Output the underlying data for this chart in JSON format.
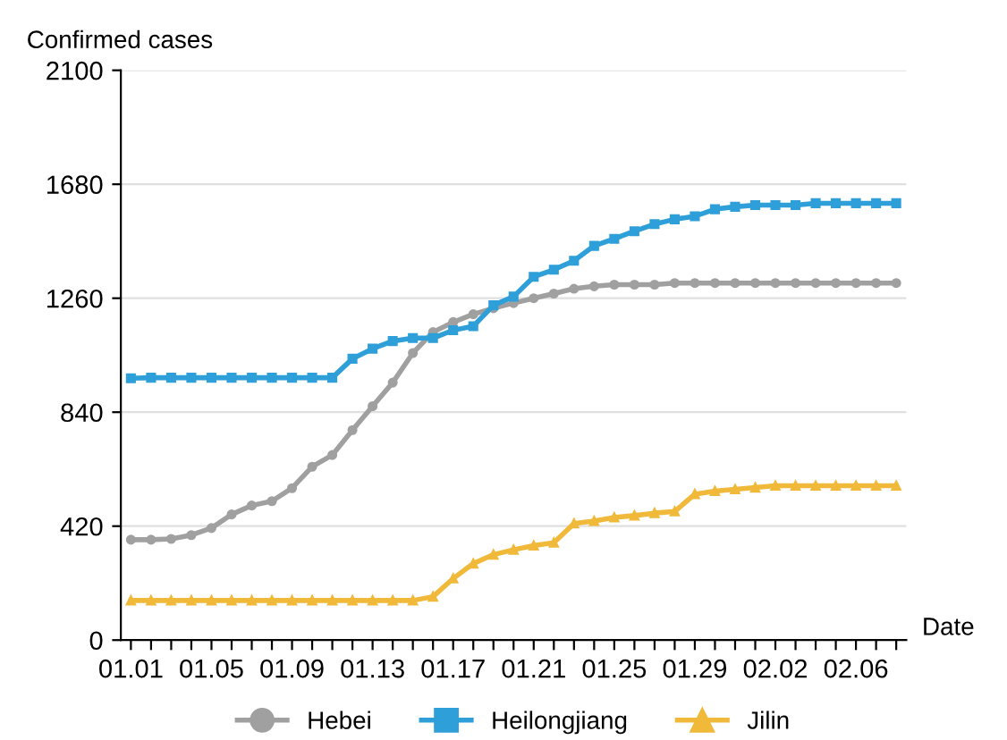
{
  "chart_data": {
    "type": "line",
    "ylabel": "Confirmed cases",
    "xlabel": "Date",
    "categories": [
      "01.01",
      null,
      null,
      null,
      "01.05",
      null,
      null,
      null,
      "01.09",
      null,
      null,
      null,
      "01.13",
      null,
      null,
      null,
      "01.17",
      null,
      null,
      null,
      "01.21",
      null,
      null,
      null,
      "01.25",
      null,
      null,
      null,
      "01.29",
      null,
      null,
      null,
      "02.02",
      null,
      null,
      null,
      "02.06",
      null,
      null
    ],
    "series": [
      {
        "name": "Hebei",
        "color": "#a0a0a0",
        "marker": "circle",
        "values": [
          370,
          370,
          373,
          387,
          413,
          463,
          496,
          512,
          560,
          639,
          682,
          774,
          862,
          949,
          1058,
          1135,
          1172,
          1201,
          1223,
          1242,
          1260,
          1277,
          1295,
          1304,
          1310,
          1310,
          1310,
          1316,
          1316,
          1316,
          1316,
          1316,
          1316,
          1316,
          1316,
          1316,
          1316,
          1316,
          1316
        ]
      },
      {
        "name": "Heilongjiang",
        "color": "#2e9fd8",
        "marker": "square",
        "values": [
          965,
          967,
          967,
          967,
          967,
          967,
          967,
          967,
          967,
          967,
          967,
          1037,
          1074,
          1102,
          1113,
          1113,
          1142,
          1157,
          1234,
          1266,
          1339,
          1365,
          1398,
          1453,
          1479,
          1507,
          1533,
          1551,
          1562,
          1588,
          1597,
          1603,
          1603,
          1603,
          1610,
          1610,
          1610,
          1610,
          1610
        ]
      },
      {
        "name": "Jilin",
        "color": "#f0b93a",
        "marker": "triangle",
        "values": [
          146,
          146,
          146,
          146,
          146,
          146,
          146,
          146,
          146,
          146,
          146,
          146,
          146,
          146,
          146,
          160,
          227,
          282,
          315,
          333,
          348,
          359,
          430,
          439,
          452,
          459,
          468,
          474,
          538,
          549,
          556,
          562,
          569,
          569,
          569,
          569,
          569,
          569,
          569
        ]
      }
    ],
    "ylim": [
      0,
      2100
    ],
    "yticks": [
      0,
      420,
      840,
      1260,
      1680,
      2100
    ],
    "grid": "y",
    "legend": "bottom"
  }
}
